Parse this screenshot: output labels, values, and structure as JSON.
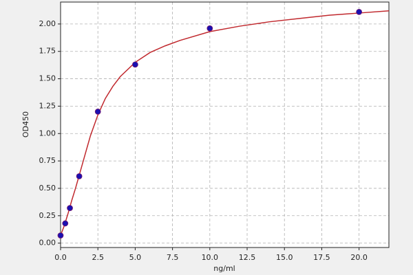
{
  "chart_data": {
    "type": "scatter",
    "x_label": "ng/ml",
    "y_label": "OD450",
    "xlim": [
      0,
      22
    ],
    "ylim": [
      -0.04,
      2.2
    ],
    "xticks": [
      {
        "value": 0,
        "label": "0.0"
      },
      {
        "value": 2.5,
        "label": "2.5"
      },
      {
        "value": 5,
        "label": "5.0"
      },
      {
        "value": 7.5,
        "label": "7.5"
      },
      {
        "value": 10,
        "label": "10.0"
      },
      {
        "value": 12.5,
        "label": "12.5"
      },
      {
        "value": 15,
        "label": "15.0"
      },
      {
        "value": 17.5,
        "label": "17.5"
      },
      {
        "value": 20,
        "label": "20.0"
      }
    ],
    "yticks": [
      {
        "value": 0,
        "label": "0.00"
      },
      {
        "value": 0.25,
        "label": "0.25"
      },
      {
        "value": 0.5,
        "label": "0.50"
      },
      {
        "value": 0.75,
        "label": "0.75"
      },
      {
        "value": 1,
        "label": "1.00"
      },
      {
        "value": 1.25,
        "label": "1.25"
      },
      {
        "value": 1.5,
        "label": "1.50"
      },
      {
        "value": 1.75,
        "label": "1.75"
      },
      {
        "value": 2,
        "label": "2.00"
      }
    ],
    "grid": true,
    "series": [
      {
        "kind": "points",
        "color": "#1a10b0",
        "x": [
          0,
          0.3125,
          0.625,
          1.25,
          2.5,
          5,
          10,
          20
        ],
        "values": [
          0.07,
          0.18,
          0.32,
          0.61,
          1.2,
          1.63,
          1.96,
          2.11
        ]
      },
      {
        "kind": "line",
        "color": "#c0282d",
        "x": [
          0,
          0.25,
          0.5,
          0.75,
          1,
          1.5,
          2,
          2.5,
          3,
          3.5,
          4,
          5,
          6,
          7,
          8,
          10,
          12,
          14,
          16,
          18,
          20,
          22
        ],
        "values": [
          0.07,
          0.16,
          0.27,
          0.39,
          0.5,
          0.74,
          0.98,
          1.17,
          1.32,
          1.43,
          1.52,
          1.65,
          1.74,
          1.8,
          1.85,
          1.93,
          1.98,
          2.02,
          2.05,
          2.08,
          2.1,
          2.12
        ]
      }
    ]
  }
}
